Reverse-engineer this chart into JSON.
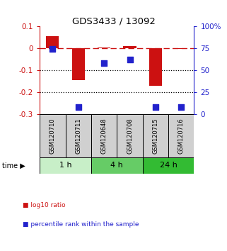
{
  "title": "GDS3433 / 13092",
  "samples": [
    "GSM120710",
    "GSM120711",
    "GSM120648",
    "GSM120708",
    "GSM120715",
    "GSM120716"
  ],
  "log10_ratio": [
    0.055,
    -0.145,
    0.003,
    0.01,
    -0.17,
    -0.003
  ],
  "percentile_rank": [
    74,
    8,
    58,
    62,
    8,
    8
  ],
  "ylim_left": [
    -0.3,
    0.1
  ],
  "ylim_right": [
    0,
    100
  ],
  "yticks_left": [
    -0.3,
    -0.2,
    -0.1,
    0.0,
    0.1
  ],
  "ytick_labels_left": [
    "-0.3",
    "-0.2",
    "-0.1",
    "0",
    "0.1"
  ],
  "yticks_right": [
    0,
    25,
    50,
    75,
    100
  ],
  "ytick_labels_right": [
    "0",
    "25",
    "50",
    "75",
    "100%"
  ],
  "hline_dotted": [
    -0.1,
    -0.2
  ],
  "hline_dashed": 0.0,
  "time_groups": [
    {
      "label": "1 h",
      "start": 0,
      "end": 2,
      "color": "#c8efc8"
    },
    {
      "label": "4 h",
      "start": 2,
      "end": 4,
      "color": "#66cc66"
    },
    {
      "label": "24 h",
      "start": 4,
      "end": 6,
      "color": "#33bb33"
    }
  ],
  "bar_color": "#cc1111",
  "point_color": "#2222cc",
  "bar_width": 0.5,
  "point_size": 40,
  "legend_items": [
    {
      "label": "log10 ratio",
      "color": "#cc1111"
    },
    {
      "label": "percentile rank within the sample",
      "color": "#2222cc"
    }
  ],
  "background_color": "#ffffff",
  "plot_bg": "#ffffff",
  "time_label": "time"
}
